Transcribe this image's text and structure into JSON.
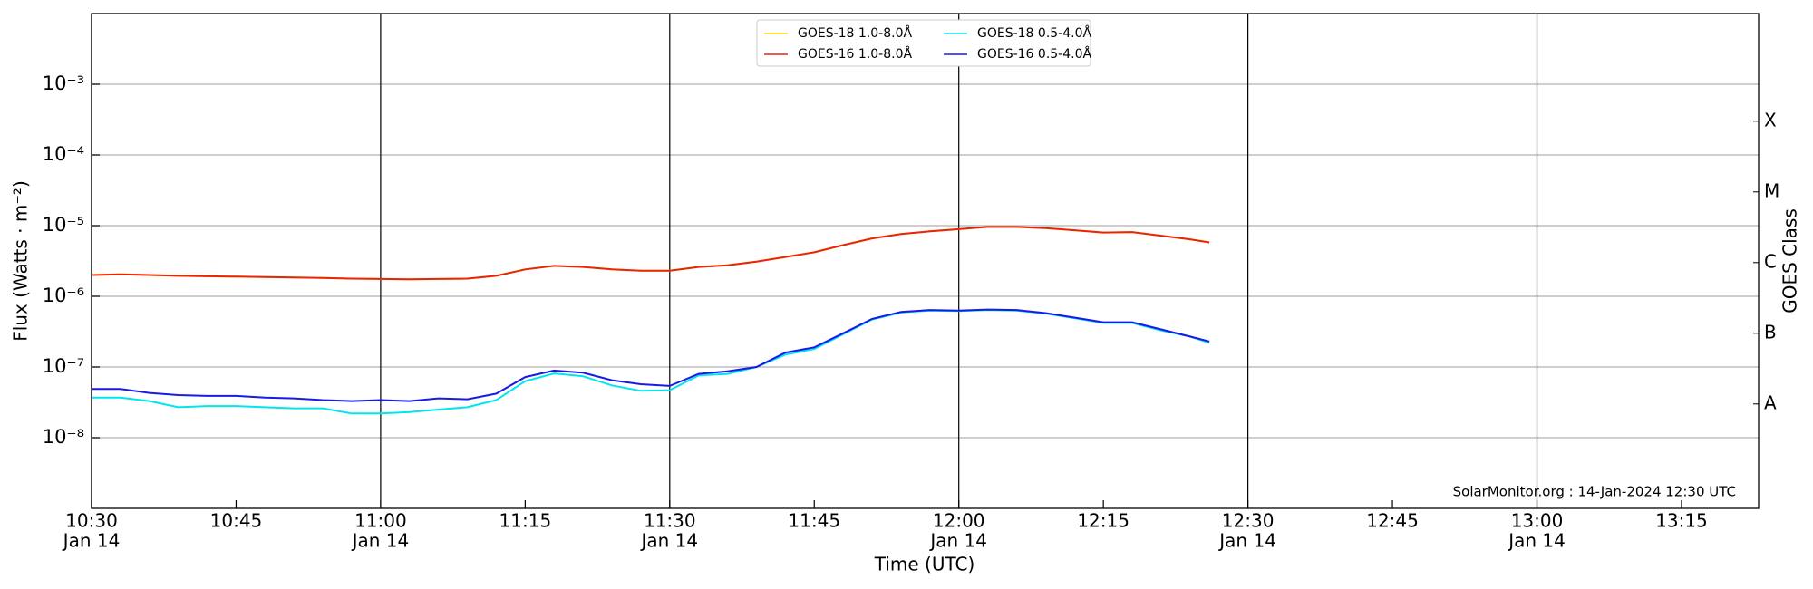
{
  "chart_data": {
    "type": "line",
    "xlabel": "Time (UTC)",
    "ylabel": "Flux (Watts · m⁻²)",
    "y2label": "GOES Class",
    "annotation": "SolarMonitor.org : 14-Jan-2024 12:30 UTC",
    "log_scale": true,
    "grid": true,
    "legend": "upper center",
    "x": [
      "10:30",
      "10:33",
      "10:36",
      "10:39",
      "10:42",
      "10:45",
      "10:48",
      "10:51",
      "10:54",
      "10:57",
      "11:00",
      "11:03",
      "11:06",
      "11:09",
      "11:12",
      "11:15",
      "11:18",
      "11:21",
      "11:24",
      "11:27",
      "11:30",
      "11:33",
      "11:36",
      "11:39",
      "11:42",
      "11:45",
      "11:48",
      "11:51",
      "11:54",
      "11:57",
      "12:00",
      "12:03",
      "12:06",
      "12:09",
      "12:12",
      "12:15",
      "12:18",
      "12:21",
      "12:24",
      "12:26"
    ],
    "xlim": [
      "10:30",
      "13:23"
    ],
    "xticks": [
      {
        "value": "10:30",
        "label": [
          "10:30",
          "Jan 14"
        ]
      },
      {
        "value": "10:45",
        "label": [
          "10:45"
        ]
      },
      {
        "value": "11:00",
        "label": [
          "11:00",
          "Jan 14"
        ]
      },
      {
        "value": "11:15",
        "label": [
          "11:15"
        ]
      },
      {
        "value": "11:30",
        "label": [
          "11:30",
          "Jan 14"
        ]
      },
      {
        "value": "11:45",
        "label": [
          "11:45"
        ]
      },
      {
        "value": "12:00",
        "label": [
          "12:00",
          "Jan 14"
        ]
      },
      {
        "value": "12:15",
        "label": [
          "12:15"
        ]
      },
      {
        "value": "12:30",
        "label": [
          "12:30",
          "Jan 14"
        ]
      },
      {
        "value": "12:45",
        "label": [
          "12:45"
        ]
      },
      {
        "value": "13:00",
        "label": [
          "13:00",
          "Jan 14"
        ]
      },
      {
        "value": "13:15",
        "label": [
          "13:15"
        ]
      }
    ],
    "ylim": [
      1e-09,
      0.01
    ],
    "yticks": [
      {
        "value": 1e-08,
        "label": "10⁻⁸"
      },
      {
        "value": 1e-07,
        "label": "10⁻⁷"
      },
      {
        "value": 1e-06,
        "label": "10⁻⁶"
      },
      {
        "value": 1e-05,
        "label": "10⁻⁵"
      },
      {
        "value": 0.0001,
        "label": "10⁻⁴"
      },
      {
        "value": 0.001,
        "label": "10⁻³"
      }
    ],
    "y2lim": [
      1e-09,
      0.01
    ],
    "y2ticks": [
      {
        "value": 3e-08,
        "label": "A"
      },
      {
        "value": 3e-07,
        "label": "B"
      },
      {
        "value": 3e-06,
        "label": "C"
      },
      {
        "value": 3e-05,
        "label": "M"
      },
      {
        "value": 0.0003,
        "label": "X"
      }
    ],
    "series": [
      {
        "name": "GOES-18 1.0-8.0Å",
        "color": "#ffd700",
        "values": [
          2e-06,
          2.05e-06,
          2e-06,
          1.95e-06,
          1.92e-06,
          1.9e-06,
          1.87e-06,
          1.84e-06,
          1.82e-06,
          1.78e-06,
          1.76e-06,
          1.74e-06,
          1.76e-06,
          1.78e-06,
          1.95e-06,
          2.4e-06,
          2.7e-06,
          2.6e-06,
          2.4e-06,
          2.3e-06,
          2.3e-06,
          2.6e-06,
          2.75e-06,
          3.1e-06,
          3.6e-06,
          4.2e-06,
          5.3e-06,
          6.6e-06,
          7.6e-06,
          8.3e-06,
          8.9e-06,
          9.6e-06,
          9.6e-06,
          9.2e-06,
          8.6e-06,
          8e-06,
          8.1e-06,
          7.2e-06,
          6.4e-06,
          5.8e-06
        ]
      },
      {
        "name": "GOES-16 1.0-8.0Å",
        "color": "#e8250c",
        "values": [
          2e-06,
          2.05e-06,
          2e-06,
          1.95e-06,
          1.92e-06,
          1.9e-06,
          1.87e-06,
          1.84e-06,
          1.82e-06,
          1.78e-06,
          1.76e-06,
          1.74e-06,
          1.76e-06,
          1.78e-06,
          1.95e-06,
          2.4e-06,
          2.7e-06,
          2.6e-06,
          2.4e-06,
          2.3e-06,
          2.3e-06,
          2.6e-06,
          2.75e-06,
          3.1e-06,
          3.6e-06,
          4.2e-06,
          5.3e-06,
          6.6e-06,
          7.6e-06,
          8.3e-06,
          8.9e-06,
          9.6e-06,
          9.6e-06,
          9.2e-06,
          8.6e-06,
          8e-06,
          8.1e-06,
          7.2e-06,
          6.4e-06,
          5.8e-06
        ]
      },
      {
        "name": "GOES-18 0.5-4.0Å",
        "color": "#00e5ee",
        "values": [
          3.7e-08,
          3.7e-08,
          3.3e-08,
          2.7e-08,
          2.8e-08,
          2.8e-08,
          2.7e-08,
          2.6e-08,
          2.6e-08,
          2.2e-08,
          2.2e-08,
          2.3e-08,
          2.5e-08,
          2.7e-08,
          3.4e-08,
          6.3e-08,
          8.1e-08,
          7.4e-08,
          5.5e-08,
          4.6e-08,
          4.7e-08,
          7.6e-08,
          8e-08,
          1e-07,
          1.5e-07,
          1.8e-07,
          2.9e-07,
          4.7e-07,
          5.9e-07,
          6.3e-07,
          6.2e-07,
          6.4e-07,
          6.3e-07,
          5.7e-07,
          4.9e-07,
          4.2e-07,
          4.2e-07,
          3.3e-07,
          2.7e-07,
          2.2e-07
        ]
      },
      {
        "name": "GOES-16 0.5-4.0Å",
        "color": "#1a1ae6",
        "values": [
          4.9e-08,
          4.9e-08,
          4.3e-08,
          4e-08,
          3.9e-08,
          3.9e-08,
          3.7e-08,
          3.6e-08,
          3.4e-08,
          3.3e-08,
          3.4e-08,
          3.3e-08,
          3.6e-08,
          3.5e-08,
          4.2e-08,
          7.2e-08,
          8.9e-08,
          8.3e-08,
          6.5e-08,
          5.7e-08,
          5.4e-08,
          8e-08,
          8.7e-08,
          1e-07,
          1.6e-07,
          1.9e-07,
          3e-07,
          4.8e-07,
          6e-07,
          6.4e-07,
          6.3e-07,
          6.5e-07,
          6.4e-07,
          5.8e-07,
          5e-07,
          4.3e-07,
          4.3e-07,
          3.4e-07,
          2.7e-07,
          2.3e-07
        ]
      }
    ]
  }
}
